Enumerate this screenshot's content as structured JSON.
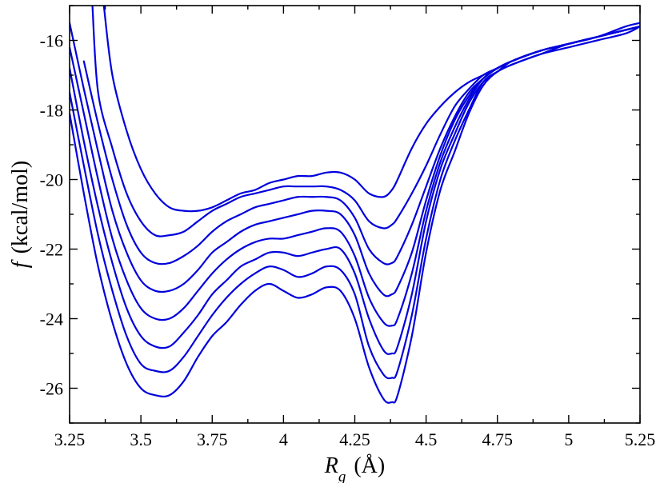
{
  "chart_data": {
    "type": "line",
    "xlabel": {
      "symbol": "R",
      "subscript": "g",
      "unit": "(Å)"
    },
    "ylabel": {
      "symbol": "f",
      "unit": "(kcal/mol)"
    },
    "xlim": [
      3.25,
      5.25
    ],
    "ylim": [
      -27,
      -15
    ],
    "x_ticks": [
      {
        "value": 3.25,
        "label": "3.25"
      },
      {
        "value": 3.5,
        "label": "3.5"
      },
      {
        "value": 3.75,
        "label": "3.75"
      },
      {
        "value": 4.0,
        "label": "4"
      },
      {
        "value": 4.25,
        "label": "4.25"
      },
      {
        "value": 4.5,
        "label": "4.5"
      },
      {
        "value": 4.75,
        "label": "4.75"
      },
      {
        "value": 5.0,
        "label": "5"
      },
      {
        "value": 5.25,
        "label": "5.25"
      }
    ],
    "y_ticks": [
      {
        "value": -16,
        "label": "-16"
      },
      {
        "value": -18,
        "label": "-18"
      },
      {
        "value": -20,
        "label": "-20"
      },
      {
        "value": -22,
        "label": "-22"
      },
      {
        "value": -24,
        "label": "-24"
      },
      {
        "value": -26,
        "label": "-26"
      }
    ],
    "grid": false,
    "legend": "none",
    "line_color": "#0000dd",
    "series": [
      {
        "x": [
          3.25,
          3.3,
          3.35,
          3.4,
          3.45,
          3.5,
          3.55,
          3.6,
          3.65,
          3.7,
          3.75,
          3.8,
          3.85,
          3.9,
          3.95,
          4.0,
          4.05,
          4.1,
          4.15,
          4.2,
          4.25,
          4.3,
          4.35,
          4.38,
          4.4,
          4.45,
          4.5,
          4.55,
          4.6,
          4.65,
          4.7,
          4.75,
          4.8,
          4.9,
          5.0,
          5.1,
          5.2,
          5.25
        ],
        "y": [
          -18.1,
          -20.4,
          -22.5,
          -24.1,
          -25.3,
          -26.0,
          -26.2,
          -26.2,
          -25.8,
          -25.1,
          -24.5,
          -24.1,
          -23.6,
          -23.2,
          -23.0,
          -23.2,
          -23.4,
          -23.3,
          -23.1,
          -23.2,
          -24.0,
          -25.4,
          -26.3,
          -26.4,
          -26.2,
          -24.5,
          -22.1,
          -20.3,
          -19.2,
          -18.1,
          -17.3,
          -16.9,
          -16.7,
          -16.4,
          -16.2,
          -16.0,
          -15.8,
          -15.6
        ]
      },
      {
        "x": [
          3.25,
          3.3,
          3.35,
          3.4,
          3.45,
          3.5,
          3.55,
          3.6,
          3.65,
          3.7,
          3.75,
          3.8,
          3.85,
          3.9,
          3.95,
          4.0,
          4.05,
          4.1,
          4.15,
          4.2,
          4.25,
          4.3,
          4.35,
          4.38,
          4.4,
          4.45,
          4.5,
          4.55,
          4.6,
          4.65,
          4.7,
          4.75,
          4.8,
          4.9,
          5.0,
          5.1,
          5.2,
          5.25
        ],
        "y": [
          -17.5,
          -19.6,
          -21.6,
          -23.2,
          -24.5,
          -25.3,
          -25.5,
          -25.5,
          -25.1,
          -24.5,
          -23.9,
          -23.4,
          -23.0,
          -22.7,
          -22.5,
          -22.6,
          -22.8,
          -22.7,
          -22.5,
          -22.6,
          -23.3,
          -24.8,
          -25.6,
          -25.7,
          -25.5,
          -23.9,
          -21.7,
          -20.0,
          -18.9,
          -18.0,
          -17.2,
          -16.9,
          -16.7,
          -16.4,
          -16.1,
          -15.9,
          -15.7,
          -15.6
        ]
      },
      {
        "x": [
          3.25,
          3.3,
          3.35,
          3.4,
          3.45,
          3.5,
          3.55,
          3.6,
          3.65,
          3.7,
          3.75,
          3.8,
          3.85,
          3.9,
          3.95,
          4.0,
          4.05,
          4.1,
          4.15,
          4.2,
          4.25,
          4.3,
          4.35,
          4.38,
          4.4,
          4.45,
          4.5,
          4.55,
          4.6,
          4.65,
          4.7,
          4.75,
          4.8,
          4.9,
          5.0,
          5.1,
          5.2,
          5.25
        ],
        "y": [
          -16.8,
          -18.9,
          -20.8,
          -22.4,
          -23.7,
          -24.5,
          -24.8,
          -24.8,
          -24.4,
          -23.9,
          -23.3,
          -22.9,
          -22.5,
          -22.3,
          -22.1,
          -22.1,
          -22.2,
          -22.1,
          -22.0,
          -22.0,
          -22.7,
          -24.0,
          -24.9,
          -25.0,
          -24.8,
          -23.3,
          -21.2,
          -19.7,
          -18.7,
          -17.8,
          -17.2,
          -16.9,
          -16.6,
          -16.3,
          -16.1,
          -15.9,
          -15.7,
          -15.6
        ]
      },
      {
        "x": [
          3.25,
          3.3,
          3.35,
          3.4,
          3.45,
          3.5,
          3.55,
          3.6,
          3.65,
          3.7,
          3.75,
          3.8,
          3.85,
          3.9,
          3.95,
          4.0,
          4.05,
          4.1,
          4.15,
          4.2,
          4.25,
          4.3,
          4.35,
          4.38,
          4.4,
          4.45,
          4.5,
          4.55,
          4.6,
          4.65,
          4.7,
          4.75,
          4.8,
          4.9,
          5.0,
          5.1,
          5.2,
          5.25
        ],
        "y": [
          -16.2,
          -18.1,
          -20.0,
          -21.7,
          -22.9,
          -23.7,
          -24.0,
          -24.0,
          -23.7,
          -23.2,
          -22.7,
          -22.3,
          -22.0,
          -21.8,
          -21.7,
          -21.7,
          -21.6,
          -21.5,
          -21.4,
          -21.5,
          -22.2,
          -23.4,
          -24.1,
          -24.2,
          -24.0,
          -22.7,
          -20.9,
          -19.5,
          -18.5,
          -17.7,
          -17.1,
          -16.8,
          -16.6,
          -16.3,
          -16.1,
          -15.9,
          -15.7,
          -15.6
        ]
      },
      {
        "x": [
          3.25,
          3.3,
          3.35,
          3.4,
          3.45,
          3.5,
          3.55,
          3.6,
          3.65,
          3.7,
          3.75,
          3.8,
          3.85,
          3.9,
          3.95,
          4.0,
          4.05,
          4.1,
          4.15,
          4.2,
          4.25,
          4.3,
          4.35,
          4.38,
          4.4,
          4.45,
          4.5,
          4.55,
          4.6,
          4.65,
          4.7,
          4.75,
          4.8,
          4.9,
          5.0,
          5.1,
          5.2,
          5.25
        ],
        "y": [
          -15.5,
          -17.4,
          -19.2,
          -20.9,
          -22.1,
          -22.9,
          -23.2,
          -23.2,
          -23.0,
          -22.6,
          -22.1,
          -21.8,
          -21.5,
          -21.3,
          -21.2,
          -21.1,
          -21.0,
          -20.9,
          -20.9,
          -21.0,
          -21.6,
          -22.7,
          -23.3,
          -23.3,
          -23.1,
          -22.1,
          -20.6,
          -19.3,
          -18.3,
          -17.6,
          -17.1,
          -16.8,
          -16.6,
          -16.3,
          -16.1,
          -15.9,
          -15.7,
          -15.6
        ]
      },
      {
        "x": [
          3.3,
          3.35,
          3.4,
          3.45,
          3.5,
          3.55,
          3.6,
          3.65,
          3.7,
          3.75,
          3.8,
          3.85,
          3.9,
          3.95,
          4.0,
          4.05,
          4.1,
          4.15,
          4.2,
          4.25,
          4.3,
          4.35,
          4.38,
          4.4,
          4.45,
          4.5,
          4.55,
          4.6,
          4.65,
          4.7,
          4.75,
          4.8,
          4.9,
          5.0,
          5.1,
          5.2,
          5.25
        ],
        "y": [
          -16.6,
          -18.4,
          -20.0,
          -21.3,
          -22.1,
          -22.4,
          -22.4,
          -22.2,
          -21.9,
          -21.5,
          -21.2,
          -21.0,
          -20.8,
          -20.7,
          -20.6,
          -20.5,
          -20.5,
          -20.5,
          -20.6,
          -21.1,
          -22.0,
          -22.4,
          -22.4,
          -22.2,
          -21.3,
          -20.2,
          -19.1,
          -18.2,
          -17.5,
          -17.1,
          -16.8,
          -16.6,
          -16.3,
          -16.1,
          -15.9,
          -15.7,
          -15.6
        ]
      },
      {
        "x": [
          3.33,
          3.35,
          3.4,
          3.45,
          3.5,
          3.55,
          3.6,
          3.65,
          3.7,
          3.75,
          3.8,
          3.85,
          3.9,
          3.95,
          4.0,
          4.05,
          4.1,
          4.15,
          4.2,
          4.25,
          4.3,
          4.35,
          4.38,
          4.4,
          4.45,
          4.5,
          4.55,
          4.6,
          4.65,
          4.7,
          4.75,
          4.8,
          4.9,
          5.0,
          5.1,
          5.2,
          5.25
        ],
        "y": [
          -15.0,
          -17.5,
          -19.1,
          -20.4,
          -21.2,
          -21.6,
          -21.6,
          -21.5,
          -21.2,
          -20.9,
          -20.7,
          -20.5,
          -20.4,
          -20.3,
          -20.2,
          -20.2,
          -20.2,
          -20.2,
          -20.3,
          -20.6,
          -21.2,
          -21.4,
          -21.3,
          -21.1,
          -20.4,
          -19.6,
          -18.7,
          -17.9,
          -17.4,
          -17.0,
          -16.8,
          -16.6,
          -16.3,
          -16.1,
          -15.9,
          -15.7,
          -15.6
        ]
      },
      {
        "x": [
          3.37,
          3.4,
          3.45,
          3.5,
          3.55,
          3.6,
          3.65,
          3.7,
          3.75,
          3.8,
          3.85,
          3.9,
          3.95,
          4.0,
          4.05,
          4.1,
          4.15,
          4.2,
          4.25,
          4.3,
          4.35,
          4.38,
          4.4,
          4.45,
          4.5,
          4.55,
          4.6,
          4.65,
          4.7,
          4.75,
          4.8,
          4.9,
          5.0,
          5.1,
          5.2,
          5.25
        ],
        "y": [
          -15.0,
          -17.0,
          -18.6,
          -19.7,
          -20.4,
          -20.8,
          -20.9,
          -20.9,
          -20.8,
          -20.6,
          -20.4,
          -20.3,
          -20.1,
          -20.0,
          -19.9,
          -19.9,
          -19.8,
          -19.8,
          -20.0,
          -20.4,
          -20.5,
          -20.3,
          -20.0,
          -19.1,
          -18.4,
          -17.9,
          -17.5,
          -17.2,
          -17.0,
          -16.8,
          -16.6,
          -16.3,
          -16.1,
          -15.9,
          -15.6,
          -15.5
        ]
      }
    ]
  }
}
